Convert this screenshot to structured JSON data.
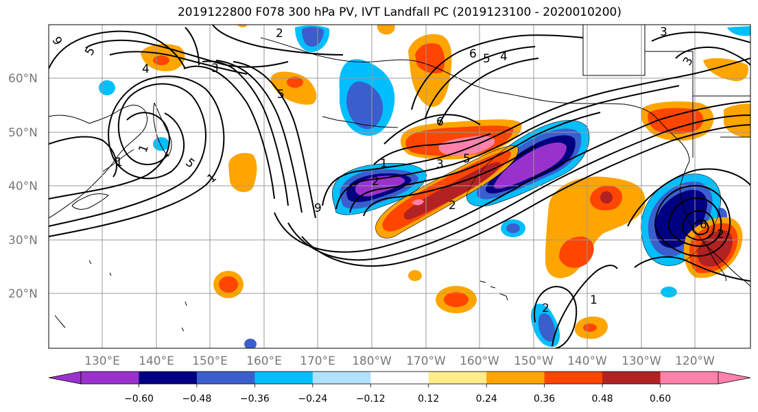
{
  "title": "2019122800 F078 300 hPa PV, IVT Landfall PC (2019123100 - 2020010200)",
  "map": {
    "lat_labels": [
      "60°N",
      "50°N",
      "40°N",
      "30°N",
      "20°N"
    ],
    "lon_labels": [
      "130°E",
      "140°E",
      "150°E",
      "160°E",
      "170°E",
      "180°W",
      "170°W",
      "160°W",
      "150°W",
      "140°W",
      "130°W",
      "120°W"
    ],
    "contour_labels": [
      "9",
      "5",
      "2",
      "3",
      "4",
      "3",
      "5",
      "6",
      "5",
      "4",
      "3",
      "5",
      "1",
      "6",
      "1",
      "2",
      "1",
      "3",
      "5",
      "9",
      "2",
      "2",
      "1",
      "6",
      "2",
      "1"
    ]
  },
  "colorbar": {
    "ticks": [
      "−0.60",
      "−0.48",
      "−0.36",
      "−0.24",
      "−0.12",
      "0.12",
      "0.24",
      "0.36",
      "0.48",
      "0.60"
    ],
    "colors": [
      "#9932cc",
      "#000080",
      "#3a5fcd",
      "#00bfff",
      "#b0e2ff",
      "#ffffff",
      "#ffec8b",
      "#ffa500",
      "#ff4500",
      "#b22222",
      "#ff82ab"
    ]
  }
}
